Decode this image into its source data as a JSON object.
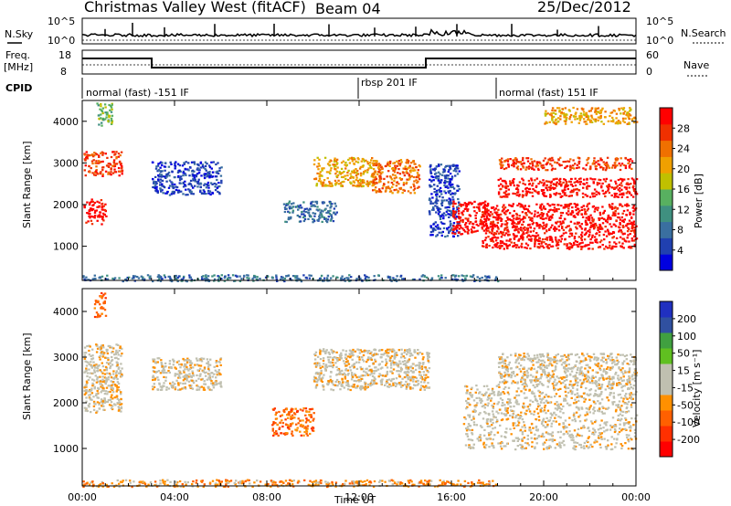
{
  "header": {
    "title": "Christmas Valley West (fitACF)",
    "beam": "Beam 04",
    "date": "25/Dec/2012"
  },
  "top_panels": {
    "nsky_label": "N.Sky",
    "nsky_ticks": [
      "10^5",
      "10^0"
    ],
    "nsearch_label": "N.Search",
    "nsearch_ticks": [
      "10^5",
      "10^0"
    ],
    "freq_label": "Freq.",
    "freq_unit": "[MHz]",
    "freq_ticks": [
      "18",
      "8"
    ],
    "nave_label": "Nave",
    "nave_ticks": [
      "60",
      "0"
    ],
    "cpid_label": "CPID",
    "cpid_segments": [
      {
        "label": "normal (fast) -151 IF",
        "start_h": 0
      },
      {
        "label": "rbsp 201 IF",
        "start_h": 12
      },
      {
        "label": "normal (fast) 151 IF",
        "start_h": 18
      }
    ]
  },
  "colors": {
    "power_scale": [
      "#0000e0",
      "#2040b0",
      "#3a6fa0",
      "#3f9080",
      "#58b060",
      "#c0c000",
      "#f0a000",
      "#f07000",
      "#f03000",
      "#ff0000"
    ],
    "velocity_scale": [
      "#ff0000",
      "#ff3000",
      "#ff6000",
      "#ff9000",
      "#c0c0b0",
      "#c0c0b0",
      "#60c020",
      "#40a040",
      "#3050a0",
      "#2030c0"
    ]
  },
  "chart_data": [
    {
      "type": "heatmap",
      "name": "Power panel",
      "ylabel": "Slant Range [km]",
      "xlabel": "Time UT",
      "x_ticks": [
        "00:00",
        "04:00",
        "08:00",
        "12:00",
        "16:00",
        "20:00",
        "00:00"
      ],
      "xlim_hours": [
        0,
        24
      ],
      "y_ticks": [
        1000,
        2000,
        3000,
        4000
      ],
      "ylim_km": [
        180,
        4500
      ],
      "colorbar_label": "Power [dB]",
      "colorbar_ticks": [
        "28",
        "24",
        "20",
        "16",
        "12",
        "8",
        "4"
      ],
      "regions": [
        {
          "t": [
            0.05,
            1.0
          ],
          "r": [
            1550,
            2150
          ],
          "level": 9
        },
        {
          "t": [
            0.05,
            1.7
          ],
          "r": [
            2700,
            3300
          ],
          "level": 8
        },
        {
          "t": [
            0.6,
            1.3
          ],
          "r": [
            3900,
            4450
          ],
          "level": 4
        },
        {
          "t": [
            3.0,
            6.0
          ],
          "r": [
            2250,
            3050
          ],
          "level": 1
        },
        {
          "t": [
            8.7,
            11.0
          ],
          "r": [
            1600,
            2100
          ],
          "level": 2
        },
        {
          "t": [
            10.0,
            12.7
          ],
          "r": [
            2450,
            3150
          ],
          "level": 6
        },
        {
          "t": [
            12.5,
            14.6
          ],
          "r": [
            2300,
            3100
          ],
          "level": 7
        },
        {
          "t": [
            15.0,
            16.3
          ],
          "r": [
            1250,
            3000
          ],
          "level": 1
        },
        {
          "t": [
            16.0,
            17.5
          ],
          "r": [
            1300,
            2100
          ],
          "level": 9
        },
        {
          "t": [
            17.3,
            24.0
          ],
          "r": [
            950,
            2050
          ],
          "level": 9
        },
        {
          "t": [
            18.0,
            24.0
          ],
          "r": [
            2200,
            2650
          ],
          "level": 9
        },
        {
          "t": [
            18.0,
            23.8
          ],
          "r": [
            2850,
            3150
          ],
          "level": 8
        },
        {
          "t": [
            20.0,
            24.0
          ],
          "r": [
            3950,
            4350
          ],
          "level": 6
        },
        {
          "t": [
            0.0,
            18.0
          ],
          "r": [
            180,
            330
          ],
          "level": 2
        }
      ]
    },
    {
      "type": "heatmap",
      "name": "Velocity panel",
      "ylabel": "Slant Range [km]",
      "xlabel": "Time UT",
      "x_ticks": [
        "00:00",
        "04:00",
        "08:00",
        "12:00",
        "16:00",
        "20:00",
        "00:00"
      ],
      "xlim_hours": [
        0,
        24
      ],
      "y_ticks": [
        1000,
        2000,
        3000,
        4000
      ],
      "ylim_km": [
        180,
        4500
      ],
      "colorbar_label": "Velocity [m s⁻¹]",
      "colorbar_ticks": [
        "200",
        "100",
        "50",
        "15",
        "-15",
        "-50",
        "-100",
        "-200"
      ],
      "regions": [
        {
          "t": [
            0.05,
            1.7
          ],
          "r": [
            1800,
            3300
          ],
          "level": 4
        },
        {
          "t": [
            0.5,
            1.0
          ],
          "r": [
            3900,
            4450
          ],
          "level": 2
        },
        {
          "t": [
            3.0,
            6.0
          ],
          "r": [
            2300,
            3000
          ],
          "level": 4
        },
        {
          "t": [
            8.2,
            10.0
          ],
          "r": [
            1300,
            1900
          ],
          "level": 2
        },
        {
          "t": [
            10.0,
            15.0
          ],
          "r": [
            2300,
            3200
          ],
          "level": 4
        },
        {
          "t": [
            16.5,
            24.0
          ],
          "r": [
            1000,
            2400
          ],
          "level": 4
        },
        {
          "t": [
            18.0,
            24.0
          ],
          "r": [
            2400,
            3100
          ],
          "level": 4
        },
        {
          "t": [
            0.0,
            18.0
          ],
          "r": [
            180,
            330
          ],
          "level": 3
        }
      ]
    }
  ]
}
